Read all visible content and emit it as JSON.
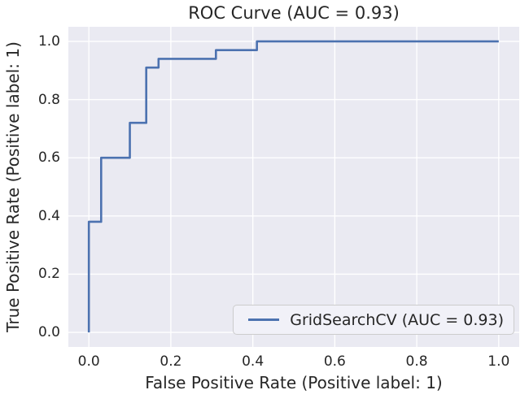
{
  "chart_data": {
    "type": "line",
    "subtype": "roc-step-curve",
    "title": "ROC Curve (AUC = 0.93)",
    "xlabel": "False Positive Rate (Positive label: 1)",
    "ylabel": "True Positive Rate (Positive label: 1)",
    "xlim": [
      -0.05,
      1.05
    ],
    "ylim": [
      -0.05,
      1.05
    ],
    "xticks": [
      0.0,
      0.2,
      0.4,
      0.6,
      0.8,
      1.0
    ],
    "yticks": [
      0.0,
      0.2,
      0.4,
      0.6,
      0.8,
      1.0
    ],
    "xtick_labels": [
      "0.0",
      "0.2",
      "0.4",
      "0.6",
      "0.8",
      "1.0"
    ],
    "ytick_labels": [
      "0.0",
      "0.2",
      "0.4",
      "0.6",
      "0.8",
      "1.0"
    ],
    "grid": true,
    "auc": 0.93,
    "legend": {
      "position": "lower right",
      "entries": [
        {
          "label": "GridSearchCV (AUC = 0.93)",
          "color": "#4c72b0"
        }
      ]
    },
    "series": [
      {
        "name": "GridSearchCV (AUC = 0.93)",
        "color": "#4c72b0",
        "points": [
          [
            0.0,
            0.0
          ],
          [
            0.0,
            0.38
          ],
          [
            0.03,
            0.38
          ],
          [
            0.03,
            0.6
          ],
          [
            0.1,
            0.6
          ],
          [
            0.1,
            0.72
          ],
          [
            0.14,
            0.72
          ],
          [
            0.14,
            0.91
          ],
          [
            0.17,
            0.91
          ],
          [
            0.17,
            0.94
          ],
          [
            0.31,
            0.94
          ],
          [
            0.31,
            0.97
          ],
          [
            0.41,
            0.97
          ],
          [
            0.41,
            1.0
          ],
          [
            1.0,
            1.0
          ]
        ]
      }
    ]
  },
  "colors": {
    "figure_bg": "#ffffff",
    "axes_bg": "#eaeaf2",
    "grid": "#ffffff",
    "line": "#4c72b0",
    "text": "#262626",
    "legend_bg": "#f1f1f8",
    "legend_border": "#cccccc"
  }
}
